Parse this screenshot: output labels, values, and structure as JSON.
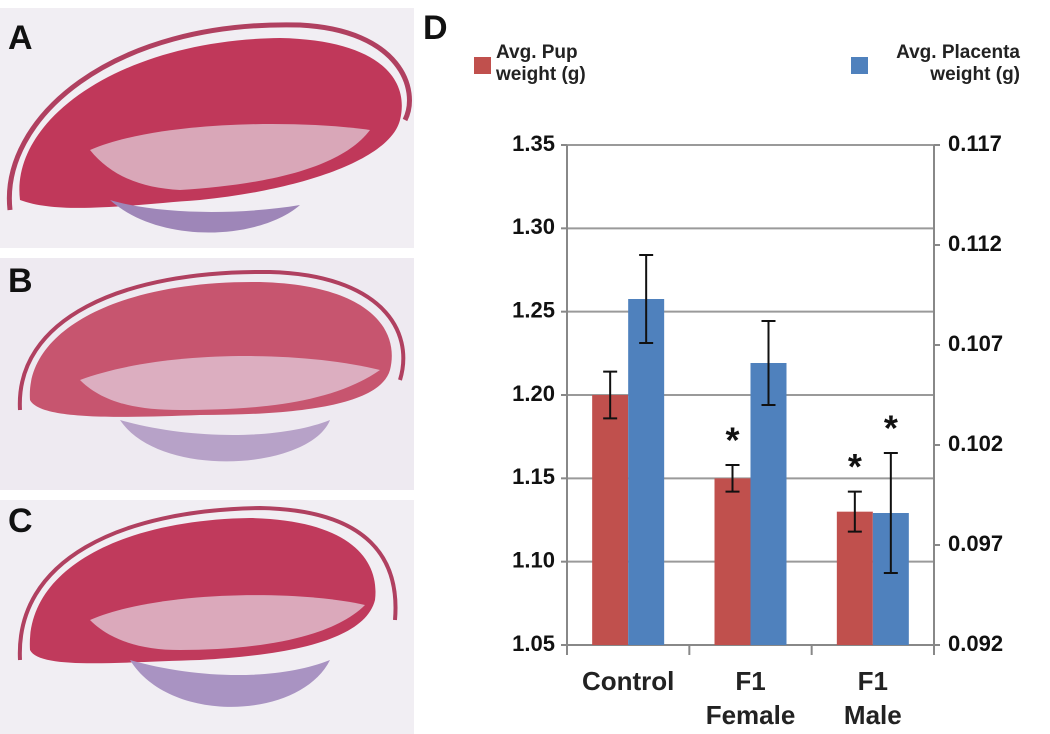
{
  "image_panels": [
    {
      "label": "A"
    },
    {
      "label": "B"
    },
    {
      "label": "C"
    }
  ],
  "chart_data": {
    "type": "bar",
    "panel_label": "D",
    "categories": [
      "Control",
      "F1\nFemale",
      "F1\nMale"
    ],
    "series": [
      {
        "name": "Avg. Pup\nweight (g)",
        "color": "#c0504d",
        "axis": "y",
        "values": [
          1.2,
          1.15,
          1.13
        ],
        "errors": [
          0.014,
          0.008,
          0.012
        ],
        "annotations": [
          null,
          "*",
          "*"
        ]
      },
      {
        "name": "Avg. Placenta\nweight (g)",
        "color": "#4f81bd",
        "axis": "y2",
        "values": [
          0.1093,
          0.1061,
          0.0986
        ],
        "errors": [
          0.0022,
          0.0021,
          0.003
        ],
        "annotations": [
          null,
          null,
          "*"
        ]
      }
    ],
    "ylim": [
      1.05,
      1.35
    ],
    "yticks": [
      1.05,
      {
        "value": 1.1,
        "label": "1.10"
      },
      1.15,
      {
        "value": 1.2,
        "label": "1.20"
      },
      1.25,
      {
        "value": 1.3,
        "label": "1.30"
      },
      1.35
    ],
    "y2lim": [
      0.092,
      0.117
    ],
    "y2ticks": [
      0.092,
      0.097,
      0.102,
      0.107,
      0.112,
      0.117
    ],
    "grid": true
  }
}
